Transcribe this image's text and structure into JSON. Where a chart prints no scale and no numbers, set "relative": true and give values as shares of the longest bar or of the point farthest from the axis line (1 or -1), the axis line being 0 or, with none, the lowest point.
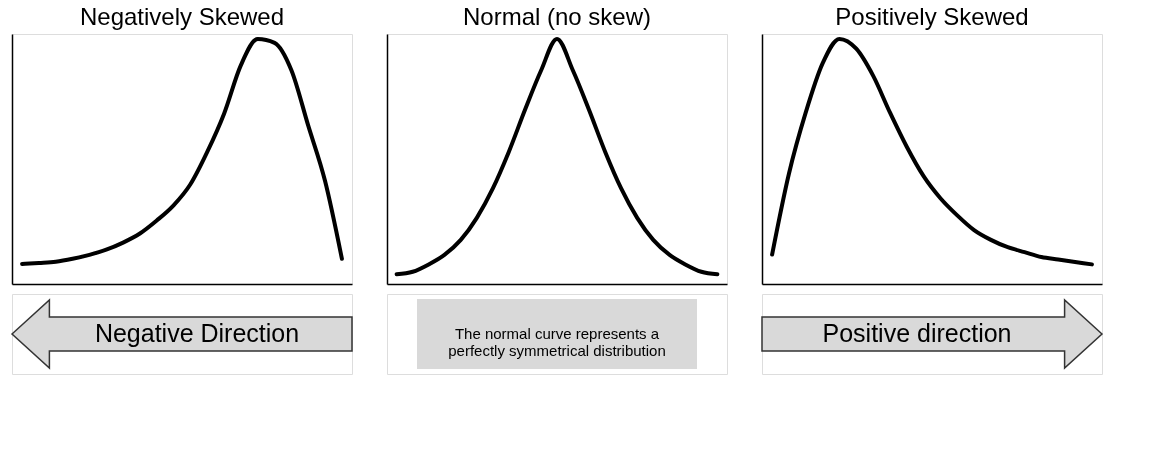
{
  "chart_data": [
    {
      "type": "line",
      "title": "Negatively Skewed",
      "relative": true,
      "tick_labels": false,
      "grid": false,
      "marker": "none",
      "line_style": "solid",
      "categories": [
        null,
        null,
        null,
        null,
        null,
        null,
        null,
        null,
        null,
        null,
        null,
        null,
        null,
        null,
        null,
        null,
        null,
        null,
        null,
        null
      ],
      "series": [
        {
          "color": "#000000",
          "values": [
            0.082,
            0.086,
            0.091,
            0.103,
            0.119,
            0.14,
            0.169,
            0.206,
            0.259,
            0.321,
            0.407,
            0.539,
            0.695,
            0.893,
            1.0,
            0.984,
            0.872,
            0.646,
            0.42,
            0.103
          ]
        }
      ],
      "annotations": [
        "Negative Direction"
      ]
    },
    {
      "type": "line",
      "title": "Normal (no skew)",
      "relative": true,
      "tick_labels": false,
      "grid": false,
      "marker": "none",
      "line_style": "solid",
      "categories": [
        null,
        null,
        null,
        null,
        null,
        null,
        null,
        null,
        null,
        null,
        null,
        null,
        null,
        null,
        null,
        null,
        null,
        null,
        null,
        null,
        null
      ],
      "series": [
        {
          "color": "#000000",
          "values": [
            0.04,
            0.05,
            0.08,
            0.12,
            0.18,
            0.27,
            0.39,
            0.54,
            0.71,
            0.87,
            1.0,
            0.87,
            0.71,
            0.54,
            0.39,
            0.27,
            0.18,
            0.12,
            0.08,
            0.05,
            0.04
          ]
        }
      ],
      "annotations": [
        "The normal curve represents a\nperfectly symmetrical distribution"
      ]
    },
    {
      "type": "line",
      "title": "Positively Skewed",
      "relative": true,
      "tick_labels": false,
      "grid": false,
      "marker": "none",
      "line_style": "solid",
      "categories": [
        null,
        null,
        null,
        null,
        null,
        null,
        null,
        null,
        null,
        null,
        null,
        null,
        null,
        null,
        null,
        null,
        null,
        null,
        null,
        null
      ],
      "series": [
        {
          "color": "#000000",
          "values": [
            0.12,
            0.45,
            0.7,
            0.9,
            1.0,
            0.96,
            0.85,
            0.7,
            0.56,
            0.44,
            0.35,
            0.28,
            0.22,
            0.18,
            0.15,
            0.13,
            0.11,
            0.1,
            0.09,
            0.08
          ]
        }
      ],
      "annotations": [
        "Positive direction"
      ]
    }
  ]
}
